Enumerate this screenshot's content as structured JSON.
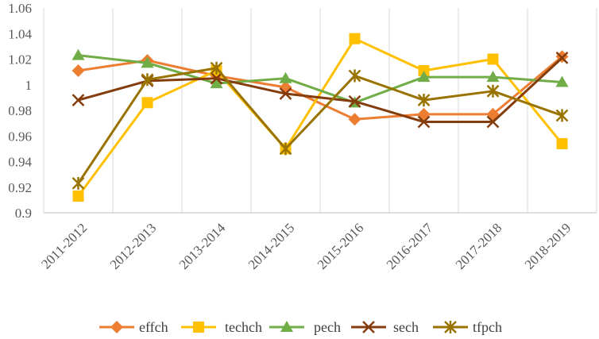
{
  "chart_data": {
    "type": "line",
    "title": "",
    "xlabel": "",
    "ylabel": "",
    "categories": [
      "2011-2012",
      "2012-2013",
      "2013-2014",
      "2014-2015",
      "2015-2016",
      "2016-2017",
      "2017-2018",
      "2018-2019"
    ],
    "ylim": [
      0.9,
      1.06
    ],
    "yticks": [
      "0.9",
      "0.92",
      "0.94",
      "0.96",
      "0.98",
      "1",
      "1.02",
      "1.04",
      "1.06"
    ],
    "grid": "vertical",
    "legend_position": "bottom",
    "series": [
      {
        "name": "effch",
        "color": "#ED7D31",
        "marker": "diamond",
        "values": [
          1.011,
          1.019,
          1.007,
          0.998,
          0.973,
          0.977,
          0.977,
          1.022
        ]
      },
      {
        "name": "techch",
        "color": "#FFC000",
        "marker": "square",
        "values": [
          0.913,
          0.986,
          1.011,
          0.95,
          1.036,
          1.011,
          1.02,
          0.954
        ]
      },
      {
        "name": "pech",
        "color": "#70AD47",
        "marker": "triangle",
        "values": [
          1.023,
          1.017,
          1.001,
          1.005,
          0.986,
          1.006,
          1.006,
          1.002
        ]
      },
      {
        "name": "sech",
        "color": "#843C0C",
        "marker": "x",
        "values": [
          0.988,
          1.003,
          1.005,
          0.993,
          0.987,
          0.971,
          0.971,
          1.021
        ]
      },
      {
        "name": "tfpch",
        "color": "#997300",
        "marker": "star",
        "values": [
          0.923,
          1.004,
          1.013,
          0.95,
          1.007,
          0.988,
          0.995,
          0.976
        ]
      }
    ]
  }
}
